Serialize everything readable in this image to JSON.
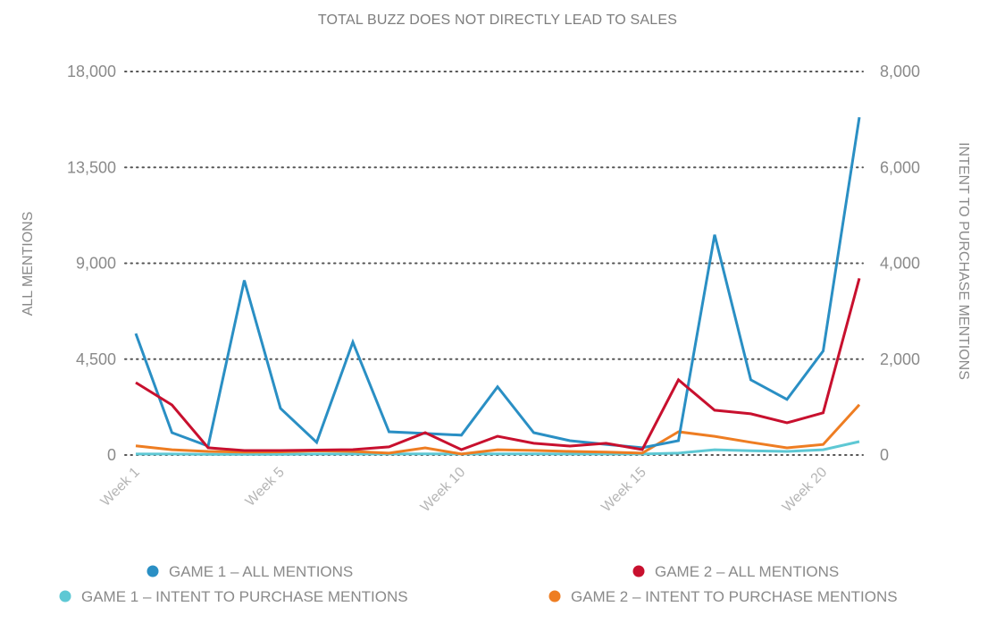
{
  "chart_data": {
    "type": "line",
    "title": "TOTAL BUZZ DOES NOT DIRECTLY LEAD TO SALES",
    "ylabel": "ALL MENTIONS",
    "y2label": "INTENT TO PURCHASE MENTIONS",
    "xlabel": "",
    "ylim": [
      0,
      18000
    ],
    "y2lim": [
      0,
      8000
    ],
    "yticks": [
      "0",
      "4,500",
      "9,000",
      "13,500",
      "18,000"
    ],
    "yticks_values": [
      0,
      4500,
      9000,
      13500,
      18000
    ],
    "y2ticks": [
      "0",
      "2,000",
      "4,000",
      "6,000",
      "8,000"
    ],
    "y2ticks_values": [
      0,
      2000,
      4000,
      6000,
      8000
    ],
    "grid": true,
    "legend_position": "bottom",
    "x": [
      "Week 1",
      "Week 2",
      "Week 3",
      "Week 4",
      "Week 5",
      "Week 6",
      "Week 7",
      "Week 8",
      "Week 9",
      "Week 10",
      "Week 11",
      "Week 12",
      "Week 13",
      "Week 14",
      "Week 15",
      "Week 16",
      "Week 17",
      "Week 18",
      "Week 19",
      "Week 20",
      "Week 21"
    ],
    "xtick_labels": [
      {
        "index": 0,
        "label": "Week 1"
      },
      {
        "index": 4,
        "label": "Week 5"
      },
      {
        "index": 9,
        "label": "Week 10"
      },
      {
        "index": 14,
        "label": "Week 15"
      },
      {
        "index": 19,
        "label": "Week 20"
      }
    ],
    "series": [
      {
        "name": "GAME 1 – ALL MENTIONS",
        "axis": "left",
        "color": "#2a8fc4",
        "values": [
          5700,
          1050,
          420,
          8200,
          2190,
          590,
          5300,
          1090,
          1010,
          930,
          3200,
          1050,
          670,
          500,
          340,
          670,
          10340,
          3530,
          2610,
          4880,
          15850
        ]
      },
      {
        "name": "GAME 2 – ALL MENTIONS",
        "axis": "left",
        "color": "#c8102e",
        "values": [
          3400,
          2350,
          340,
          210,
          210,
          230,
          250,
          380,
          1050,
          250,
          880,
          550,
          420,
          550,
          250,
          3530,
          2100,
          1935,
          1510,
          1980,
          8290
        ]
      },
      {
        "name": "GAME 1 – INTENT TO PURCHASE MENTIONS",
        "axis": "right",
        "color": "#5ec8d4",
        "values": [
          20,
          20,
          15,
          15,
          15,
          20,
          20,
          20,
          25,
          20,
          25,
          25,
          20,
          20,
          20,
          40,
          110,
          90,
          75,
          110,
          280
        ]
      },
      {
        "name": "GAME 2 – INTENT TO PURCHASE MENTIONS",
        "axis": "right",
        "color": "#ee7d22",
        "values": [
          190,
          110,
          75,
          60,
          65,
          85,
          75,
          40,
          150,
          20,
          110,
          95,
          75,
          60,
          40,
          485,
          390,
          265,
          150,
          220,
          1050
        ]
      }
    ]
  }
}
